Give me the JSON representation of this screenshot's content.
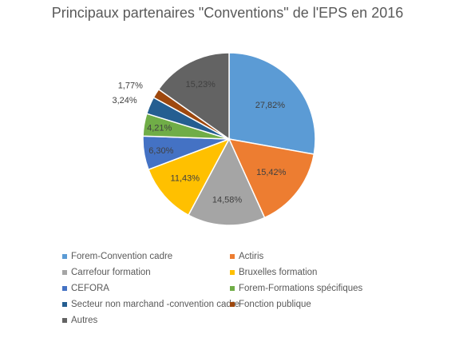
{
  "chart_data": {
    "type": "pie",
    "title": "Principaux partenaires \"Conventions\" de l'EPS en 2016",
    "start_angle_deg": 0,
    "direction": "clockwise",
    "legend_position": "bottom",
    "slices": [
      {
        "name": "Forem-Convention cadre",
        "value": 27.82,
        "label": "27,82%",
        "color": "#5B9BD5"
      },
      {
        "name": "Actiris",
        "value": 15.42,
        "label": "15,42%",
        "color": "#ED7D31"
      },
      {
        "name": "Carrefour formation",
        "value": 14.58,
        "label": "14,58%",
        "color": "#A5A5A5"
      },
      {
        "name": "Bruxelles formation",
        "value": 11.43,
        "label": "11,43%",
        "color": "#FFC000"
      },
      {
        "name": "CEFORA",
        "value": 6.3,
        "label": "6,30%",
        "color": "#4472C4"
      },
      {
        "name": "Forem-Formations spécifiques",
        "value": 4.21,
        "label": "4,21%",
        "color": "#70AD47"
      },
      {
        "name": "Secteur non marchand -convention cadre",
        "value": 3.24,
        "label": "3,24%",
        "color": "#255E91"
      },
      {
        "name": "Fonction publique",
        "value": 1.77,
        "label": "1,77%",
        "color": "#9E480E"
      },
      {
        "name": "Autres",
        "value": 15.23,
        "label": "15,23%",
        "color": "#636363"
      }
    ]
  }
}
